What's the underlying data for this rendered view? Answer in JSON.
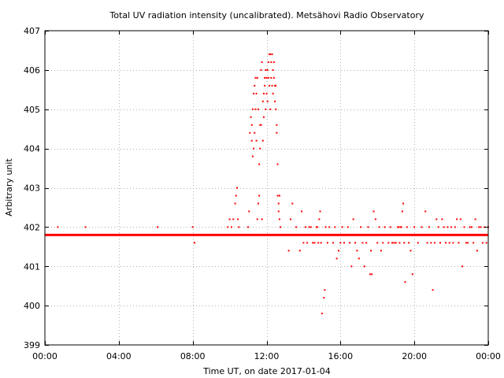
{
  "chart_data": {
    "type": "scatter",
    "title": "Total UV radiation intensity (uncalibrated). Metsähovi Radio Observatory",
    "xlabel": "Time UT, on date 2017-01-04",
    "ylabel": "Arbitrary unit",
    "xlim": [
      0,
      24
    ],
    "ylim": [
      399,
      407
    ],
    "x_tick_values": [
      0,
      4,
      8,
      12,
      16,
      20,
      24
    ],
    "x_tick_labels": [
      "00:00",
      "04:00",
      "08:00",
      "12:00",
      "16:00",
      "20:00",
      "00:00"
    ],
    "y_ticks": [
      399,
      400,
      401,
      402,
      403,
      404,
      405,
      406,
      407
    ],
    "grid": true,
    "point_color": "#ff0000",
    "series": [
      {
        "baseline": {
          "x_start": 0,
          "x_end": 24,
          "y": 401.8
        },
        "points": [
          [
            0.7,
            402.0
          ],
          [
            2.2,
            402.0
          ],
          [
            6.1,
            402.0
          ],
          [
            8.0,
            402.0
          ],
          [
            8.1,
            401.6
          ],
          [
            9.9,
            402.0
          ],
          [
            10.0,
            402.2
          ],
          [
            10.1,
            402.0
          ],
          [
            10.2,
            402.2
          ],
          [
            10.3,
            402.6
          ],
          [
            10.35,
            402.8
          ],
          [
            10.4,
            403.0
          ],
          [
            10.45,
            402.2
          ],
          [
            10.5,
            402.0
          ],
          [
            11.0,
            402.0
          ],
          [
            11.05,
            402.4
          ],
          [
            11.1,
            404.4
          ],
          [
            11.15,
            404.8
          ],
          [
            11.2,
            404.2
          ],
          [
            11.2,
            404.6
          ],
          [
            11.25,
            405.0
          ],
          [
            11.25,
            403.8
          ],
          [
            11.3,
            405.4
          ],
          [
            11.3,
            404.0
          ],
          [
            11.35,
            405.6
          ],
          [
            11.35,
            404.4
          ],
          [
            11.4,
            405.8
          ],
          [
            11.4,
            405.0
          ],
          [
            11.45,
            405.4
          ],
          [
            11.45,
            404.2
          ],
          [
            11.5,
            405.8
          ],
          [
            11.5,
            402.2
          ],
          [
            11.55,
            405.0
          ],
          [
            11.55,
            402.6
          ],
          [
            11.6,
            403.6
          ],
          [
            11.6,
            402.8
          ],
          [
            11.65,
            404.6
          ],
          [
            11.65,
            404.0
          ],
          [
            11.7,
            406.0
          ],
          [
            11.7,
            404.6
          ],
          [
            11.75,
            406.2
          ],
          [
            11.75,
            402.2
          ],
          [
            11.8,
            405.2
          ],
          [
            11.8,
            404.2
          ],
          [
            11.85,
            405.4
          ],
          [
            11.85,
            404.8
          ],
          [
            11.9,
            405.8
          ],
          [
            11.9,
            405.6
          ],
          [
            11.95,
            405.0
          ],
          [
            11.95,
            406.0
          ],
          [
            12.0,
            405.4
          ],
          [
            12.0,
            405.8
          ],
          [
            12.05,
            406.0
          ],
          [
            12.05,
            405.2
          ],
          [
            12.1,
            406.2
          ],
          [
            12.1,
            405.8
          ],
          [
            12.15,
            406.4
          ],
          [
            12.15,
            405.6
          ],
          [
            12.2,
            406.4
          ],
          [
            12.2,
            405.0
          ],
          [
            12.25,
            405.8
          ],
          [
            12.25,
            406.2
          ],
          [
            12.3,
            405.6
          ],
          [
            12.3,
            406.4
          ],
          [
            12.35,
            406.0
          ],
          [
            12.35,
            405.4
          ],
          [
            12.4,
            406.2
          ],
          [
            12.4,
            405.8
          ],
          [
            12.45,
            405.6
          ],
          [
            12.45,
            405.2
          ],
          [
            12.5,
            405.6
          ],
          [
            12.5,
            405.0
          ],
          [
            12.55,
            404.4
          ],
          [
            12.55,
            404.6
          ],
          [
            12.6,
            403.6
          ],
          [
            12.6,
            402.8
          ],
          [
            12.65,
            402.6
          ],
          [
            12.65,
            402.4
          ],
          [
            12.7,
            402.8
          ],
          [
            12.7,
            402.2
          ],
          [
            12.75,
            402.0
          ],
          [
            13.2,
            401.4
          ],
          [
            13.3,
            402.2
          ],
          [
            13.4,
            402.6
          ],
          [
            13.6,
            402.0
          ],
          [
            13.7,
            401.8
          ],
          [
            13.8,
            401.4
          ],
          [
            13.9,
            402.4
          ],
          [
            14.0,
            401.6
          ],
          [
            14.1,
            402.0
          ],
          [
            14.2,
            401.6
          ],
          [
            14.3,
            402.0
          ],
          [
            14.4,
            402.0
          ],
          [
            14.5,
            401.6
          ],
          [
            14.6,
            401.6
          ],
          [
            14.7,
            402.0
          ],
          [
            14.75,
            402.0
          ],
          [
            14.8,
            401.6
          ],
          [
            14.85,
            402.2
          ],
          [
            14.9,
            402.4
          ],
          [
            14.95,
            401.6
          ],
          [
            15.0,
            399.8
          ],
          [
            15.1,
            400.2
          ],
          [
            15.15,
            400.4
          ],
          [
            15.2,
            402.0
          ],
          [
            15.3,
            401.6
          ],
          [
            15.4,
            402.0
          ],
          [
            15.6,
            401.6
          ],
          [
            15.7,
            402.0
          ],
          [
            15.8,
            401.2
          ],
          [
            15.9,
            401.4
          ],
          [
            16.0,
            401.6
          ],
          [
            16.1,
            402.0
          ],
          [
            16.2,
            401.6
          ],
          [
            16.4,
            402.0
          ],
          [
            16.5,
            401.6
          ],
          [
            16.6,
            401.0
          ],
          [
            16.7,
            402.2
          ],
          [
            16.8,
            401.6
          ],
          [
            16.9,
            401.4
          ],
          [
            17.0,
            401.2
          ],
          [
            17.1,
            402.0
          ],
          [
            17.2,
            401.6
          ],
          [
            17.3,
            401.0
          ],
          [
            17.4,
            401.6
          ],
          [
            17.5,
            402.0
          ],
          [
            17.6,
            400.8
          ],
          [
            17.65,
            401.4
          ],
          [
            17.7,
            400.8
          ],
          [
            17.8,
            402.4
          ],
          [
            17.9,
            402.2
          ],
          [
            18.0,
            401.6
          ],
          [
            18.1,
            402.0
          ],
          [
            18.2,
            401.4
          ],
          [
            18.3,
            401.6
          ],
          [
            18.4,
            402.0
          ],
          [
            18.6,
            401.6
          ],
          [
            18.7,
            402.0
          ],
          [
            18.8,
            401.6
          ],
          [
            18.9,
            401.6
          ],
          [
            19.0,
            401.6
          ],
          [
            19.1,
            402.0
          ],
          [
            19.15,
            402.0
          ],
          [
            19.2,
            401.6
          ],
          [
            19.25,
            402.0
          ],
          [
            19.3,
            402.0
          ],
          [
            19.35,
            402.4
          ],
          [
            19.4,
            402.6
          ],
          [
            19.45,
            401.6
          ],
          [
            19.5,
            400.6
          ],
          [
            19.6,
            402.0
          ],
          [
            19.7,
            401.6
          ],
          [
            19.8,
            401.4
          ],
          [
            19.9,
            400.8
          ],
          [
            20.0,
            402.0
          ],
          [
            20.2,
            401.6
          ],
          [
            20.4,
            402.0
          ],
          [
            20.6,
            402.4
          ],
          [
            20.7,
            401.6
          ],
          [
            20.8,
            402.0
          ],
          [
            20.9,
            401.6
          ],
          [
            21.0,
            400.4
          ],
          [
            21.1,
            401.6
          ],
          [
            21.2,
            402.2
          ],
          [
            21.3,
            402.0
          ],
          [
            21.4,
            401.6
          ],
          [
            21.5,
            402.2
          ],
          [
            21.6,
            402.0
          ],
          [
            21.7,
            401.6
          ],
          [
            21.8,
            402.0
          ],
          [
            21.9,
            401.6
          ],
          [
            22.0,
            402.0
          ],
          [
            22.1,
            401.6
          ],
          [
            22.2,
            402.0
          ],
          [
            22.3,
            402.2
          ],
          [
            22.4,
            401.6
          ],
          [
            22.5,
            402.2
          ],
          [
            22.6,
            401.0
          ],
          [
            22.7,
            402.0
          ],
          [
            22.8,
            401.6
          ],
          [
            22.9,
            401.6
          ],
          [
            23.0,
            402.0
          ],
          [
            23.1,
            402.0
          ],
          [
            23.2,
            401.6
          ],
          [
            23.3,
            402.2
          ],
          [
            23.4,
            401.4
          ],
          [
            23.5,
            402.0
          ],
          [
            23.6,
            402.0
          ],
          [
            23.7,
            401.6
          ],
          [
            23.8,
            402.0
          ],
          [
            23.9,
            401.6
          ],
          [
            24.0,
            402.0
          ]
        ]
      }
    ]
  }
}
